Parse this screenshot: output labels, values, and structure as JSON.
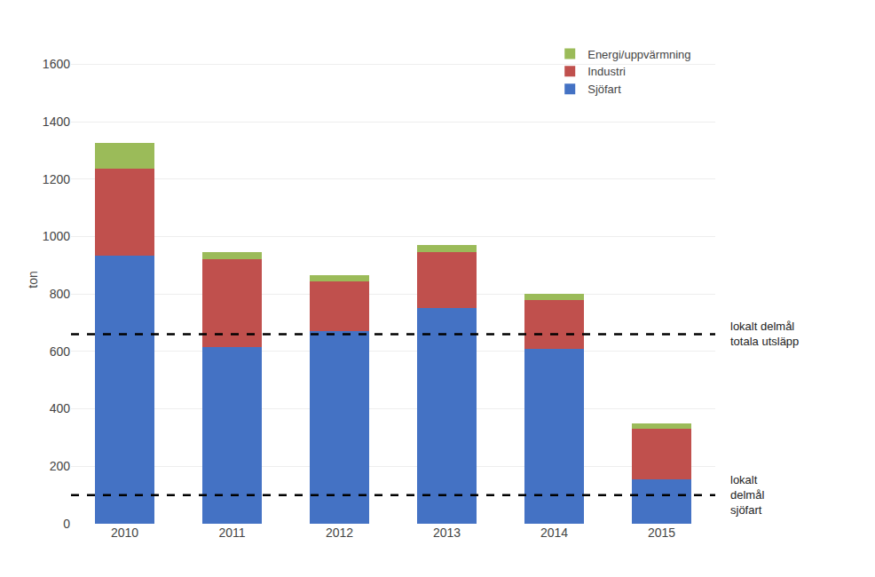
{
  "chart_data": {
    "type": "bar",
    "stacked": true,
    "categories": [
      "2010",
      "2011",
      "2012",
      "2013",
      "2014",
      "2015"
    ],
    "series": [
      {
        "name": "Sjöfart",
        "color": "#4472C4",
        "values": [
          935,
          615,
          670,
          750,
          610,
          155
        ]
      },
      {
        "name": "Industri",
        "color": "#C0504D",
        "values": [
          300,
          305,
          175,
          195,
          170,
          175
        ]
      },
      {
        "name": "Energi/uppvärmning",
        "color": "#9BBB59",
        "values": [
          90,
          25,
          20,
          25,
          20,
          20
        ]
      }
    ],
    "ylabel": "ton",
    "ylim": [
      0,
      1700
    ],
    "yticks": [
      0,
      200,
      400,
      600,
      800,
      1000,
      1200,
      1400,
      1600
    ],
    "grid": true,
    "legend": "upper right",
    "annotations": [
      {
        "text": "lokalt delmål\ntotala utsläpp",
        "y": 660,
        "line_style": "dashed",
        "color": "#000000"
      },
      {
        "text": "lokalt\ndelmål\nsjöfart",
        "y": 100,
        "line_style": "dashed",
        "color": "#000000"
      }
    ]
  }
}
